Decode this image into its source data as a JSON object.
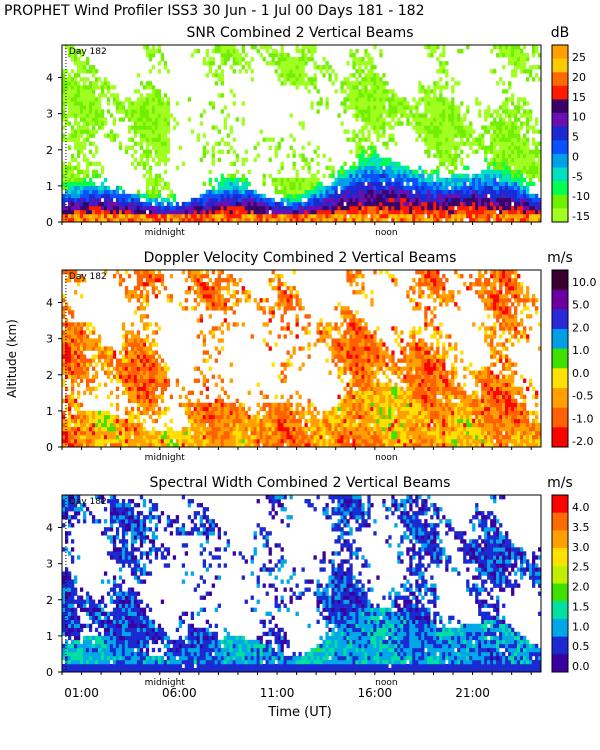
{
  "page_title": "PROPHET Wind Profiler ISS3  30 Jun -  1 Jul 00 Days 181 - 182",
  "shared": {
    "ylabel": "Altitude (km)",
    "xlabel": "Time (UT)",
    "yticks": [
      0,
      1,
      2,
      3,
      4
    ],
    "day_marker": "Day 182",
    "inner_labels": [
      "midnight",
      "noon"
    ],
    "time_ticks": [
      "01:00",
      "06:00",
      "11:00",
      "16:00",
      "21:00"
    ],
    "time_tick_hours": [
      1,
      6,
      11,
      16,
      21
    ],
    "xlim_hours": [
      0,
      24.5
    ],
    "ylim_km": [
      0,
      4.9
    ],
    "midnight_hour": 5,
    "noon_hour": 17,
    "day_boundary_hour": 0.2
  },
  "chart_data": [
    {
      "type": "heatmap",
      "title": "SNR Combined 2 Vertical Beams",
      "unit": "dB",
      "scale": [
        "25",
        "20",
        "15",
        "10",
        "5",
        "0",
        "-5",
        "-10",
        "-15"
      ],
      "colors": [
        "#ffa000",
        "#ffc800",
        "#ff6a00",
        "#ff1a00",
        "#3a006a",
        "#6a10b0",
        "#1a2ad0",
        "#0a50ff",
        "#00a0e8",
        "#00e0c0",
        "#00ff50",
        "#70f000",
        "#a0ff20"
      ],
      "value_range": [
        -15,
        28
      ]
    },
    {
      "type": "heatmap",
      "title": "Doppler Velocity Combined 2 Vertical Beams",
      "unit": "m/s",
      "scale": [
        "10.0",
        "5.0",
        "2.0",
        "1.0",
        "0.0",
        "-0.5",
        "-1.0",
        "-2.0"
      ],
      "colors": [
        "#3a0030",
        "#6a00a0",
        "#2a2ad8",
        "#00a0e8",
        "#40e000",
        "#ffe000",
        "#ffa000",
        "#ff6000",
        "#ff0000"
      ],
      "value_range": [
        -2.0,
        10.0
      ]
    },
    {
      "type": "heatmap",
      "title": "Spectral Width Combined 2 Vertical Beams",
      "unit": "m/s",
      "scale": [
        "4.0",
        "3.5",
        "3.0",
        "2.5",
        "2.0",
        "1.5",
        "1.0",
        "0.5",
        "0.0"
      ],
      "colors": [
        "#ff0000",
        "#ff6a00",
        "#ffa000",
        "#ffe000",
        "#c0f000",
        "#40e000",
        "#00e0a0",
        "#00a8e8",
        "#1a2ad0",
        "#3a00a0"
      ],
      "value_range": [
        0.0,
        4.3
      ]
    }
  ]
}
